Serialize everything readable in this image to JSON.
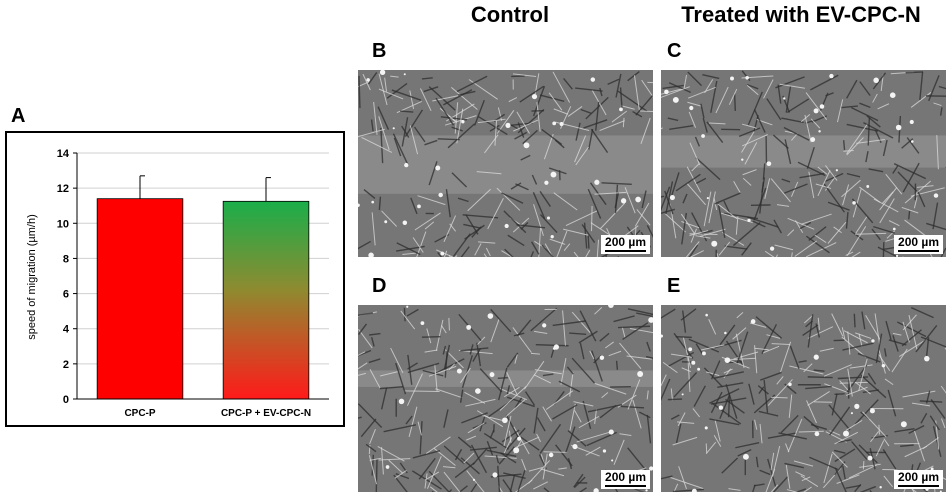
{
  "headers": {
    "control": "Control",
    "treated": "Treated with EV-CPC-N"
  },
  "letters": {
    "a": "A",
    "b": "B",
    "c": "C",
    "d": "D",
    "e": "E"
  },
  "scale_label": "200 µm",
  "chart_data": {
    "type": "bar",
    "categories": [
      "CPC-P",
      "CPC-P + EV-CPC-N"
    ],
    "values": [
      11.4,
      11.25
    ],
    "errors": [
      1.3,
      1.35
    ],
    "ylabel": "speed of migration (µm/h)",
    "ylim": [
      0,
      14
    ],
    "yticks": [
      "0",
      "2",
      "4",
      "6",
      "8",
      "10",
      "12",
      "14"
    ],
    "grid": true,
    "colors": {
      "bar1": "#ff0000",
      "bar2_top": "#1aae4a",
      "bar2_bottom": "#ff1a1a"
    }
  },
  "images": [
    {
      "id": "B",
      "condition": "Control"
    },
    {
      "id": "C",
      "condition": "Treated with EV-CPC-N"
    },
    {
      "id": "D",
      "condition": "Control"
    },
    {
      "id": "E",
      "condition": "Treated with EV-CPC-N"
    }
  ]
}
